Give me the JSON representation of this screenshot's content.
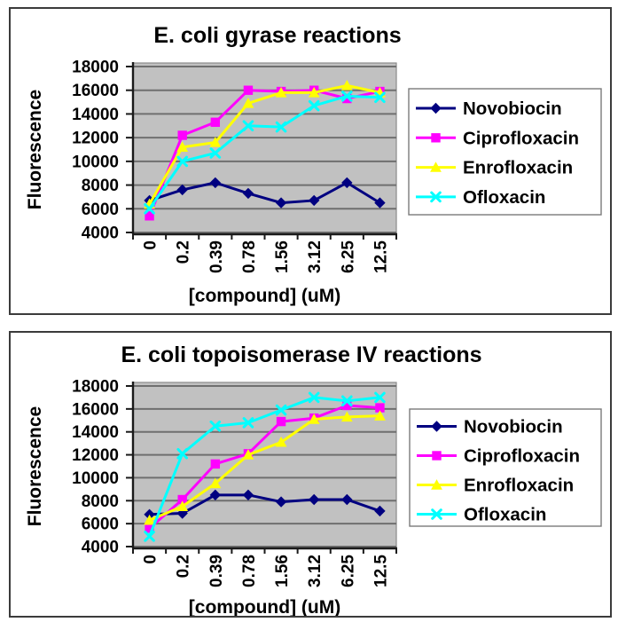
{
  "page": {
    "background": "#ffffff"
  },
  "chart_data": [
    {
      "type": "line",
      "title": "E. coli gyrase reactions",
      "xlabel": "[compound] (uM)",
      "ylabel": "Fluorescence",
      "categories": [
        "0",
        "0.2",
        "0.39",
        "0.78",
        "1.56",
        "3.12",
        "6.25",
        "12.5"
      ],
      "ylim": [
        4000,
        18000
      ],
      "yticks": [
        4000,
        6000,
        8000,
        10000,
        12000,
        14000,
        16000,
        18000
      ],
      "grid": true,
      "legend_position": "right",
      "plot_bg": "#c1c1c1",
      "series": [
        {
          "name": "Novobiocin",
          "color": "#000080",
          "marker": "diamond",
          "values": [
            6700,
            7600,
            8200,
            7300,
            6500,
            6700,
            8200,
            6500
          ]
        },
        {
          "name": "Ciprofloxacin",
          "color": "#ff00ff",
          "marker": "square",
          "values": [
            5400,
            12200,
            13300,
            16000,
            15900,
            16000,
            15300,
            15900
          ]
        },
        {
          "name": "Enrofloxacin",
          "color": "#ffff00",
          "marker": "triangle",
          "values": [
            6400,
            11200,
            11600,
            14900,
            15800,
            15800,
            16400,
            15800
          ]
        },
        {
          "name": "Ofloxacin",
          "color": "#00ffff",
          "marker": "x",
          "values": [
            6000,
            10000,
            10700,
            13000,
            12900,
            14700,
            15500,
            15400
          ]
        }
      ]
    },
    {
      "type": "line",
      "title": "E. coli topoisomerase IV reactions",
      "xlabel": "[compound] (uM)",
      "ylabel": "Fluorescence",
      "categories": [
        "0",
        "0.2",
        "0.39",
        "0.78",
        "1.56",
        "3.12",
        "6.25",
        "12.5"
      ],
      "ylim": [
        4000,
        18000
      ],
      "yticks": [
        4000,
        6000,
        8000,
        10000,
        12000,
        14000,
        16000,
        18000
      ],
      "grid": true,
      "legend_position": "right",
      "plot_bg": "#c1c1c1",
      "series": [
        {
          "name": "Novobiocin",
          "color": "#000080",
          "marker": "diamond",
          "values": [
            6800,
            6900,
            8500,
            8500,
            7900,
            8100,
            8100,
            7100
          ]
        },
        {
          "name": "Ciprofloxacin",
          "color": "#ff00ff",
          "marker": "square",
          "values": [
            5600,
            8100,
            11200,
            12100,
            14900,
            15200,
            16300,
            16100
          ]
        },
        {
          "name": "Enrofloxacin",
          "color": "#ffff00",
          "marker": "triangle",
          "values": [
            6300,
            7500,
            9500,
            12000,
            13100,
            15100,
            15300,
            15400
          ]
        },
        {
          "name": "Ofloxacin",
          "color": "#00ffff",
          "marker": "x",
          "values": [
            4900,
            12100,
            14500,
            14800,
            15900,
            17000,
            16700,
            17000
          ]
        }
      ]
    }
  ],
  "styles": {
    "grid_color": "#6f6f6f",
    "axis_color": "#1a1a1a",
    "plot_border_color": "#8a8a8a",
    "legend_border_color": "#7a7a7a",
    "panel_border_color": "#3b3b3b",
    "text_color": "#000000"
  }
}
